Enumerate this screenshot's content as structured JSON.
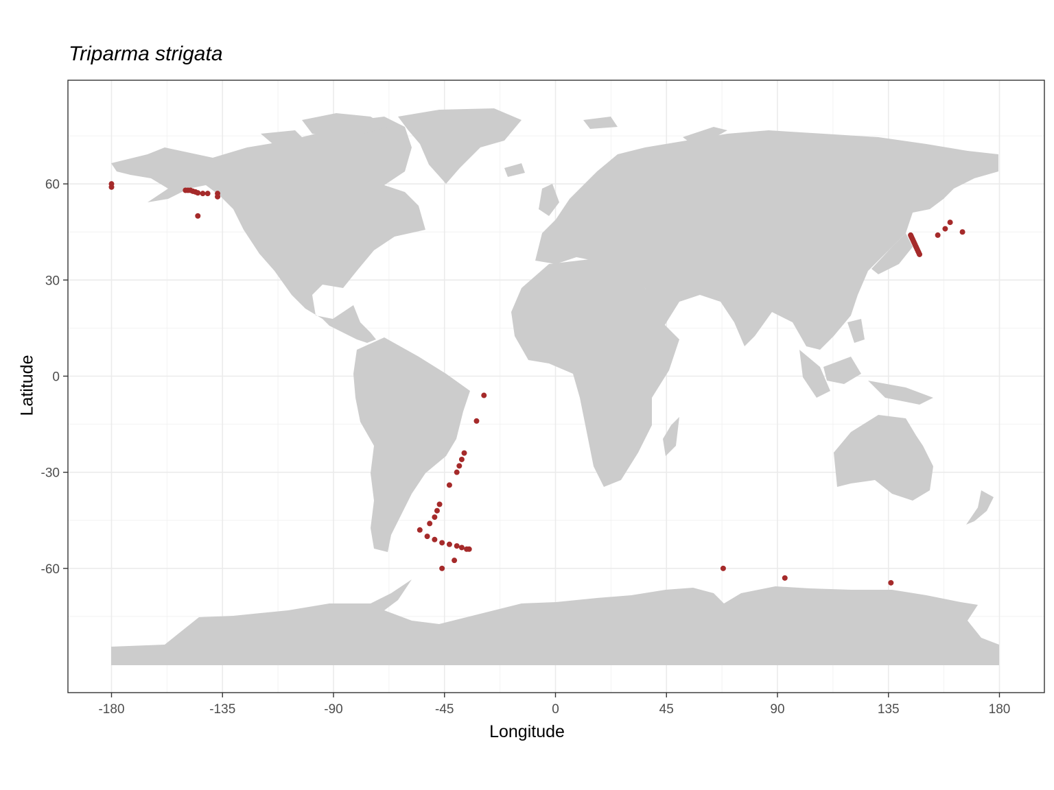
{
  "chart_data": {
    "type": "scatter",
    "subtype": "map",
    "title": "Triparma strigata",
    "xlabel": "Longitude",
    "ylabel": "Latitude",
    "xlim": [
      -180,
      180
    ],
    "ylim": [
      -90,
      90
    ],
    "x_ticks": [
      -180,
      -135,
      -90,
      -45,
      0,
      45,
      90,
      135,
      180
    ],
    "y_ticks": [
      -60,
      -30,
      0,
      30,
      60
    ],
    "x_tick_labels": [
      "-180",
      "-135",
      "-90",
      "-45",
      "0",
      "45",
      "90",
      "135",
      "180"
    ],
    "y_tick_labels": [
      "-60",
      "-30",
      "0",
      "30",
      "60"
    ],
    "grid": true,
    "land_color": "#cccccc",
    "point_color": "#a52a2a",
    "series": [
      {
        "points": [
          {
            "x": -180,
            "y": 60
          },
          {
            "x": -180,
            "y": 59
          },
          {
            "x": -150,
            "y": 58
          },
          {
            "x": -149,
            "y": 58
          },
          {
            "x": -148,
            "y": 58
          },
          {
            "x": -147,
            "y": 57.7
          },
          {
            "x": -146,
            "y": 57.5
          },
          {
            "x": -145,
            "y": 57.2
          },
          {
            "x": -143,
            "y": 57
          },
          {
            "x": -141,
            "y": 57
          },
          {
            "x": -137,
            "y": 57
          },
          {
            "x": -137,
            "y": 56
          },
          {
            "x": -145,
            "y": 50
          },
          {
            "x": 144,
            "y": 44
          },
          {
            "x": 144.3,
            "y": 43.5
          },
          {
            "x": 144.6,
            "y": 43
          },
          {
            "x": 144.9,
            "y": 42.5
          },
          {
            "x": 145.2,
            "y": 42
          },
          {
            "x": 145.5,
            "y": 41.5
          },
          {
            "x": 145.8,
            "y": 41
          },
          {
            "x": 146.1,
            "y": 40.5
          },
          {
            "x": 146.4,
            "y": 40
          },
          {
            "x": 146.7,
            "y": 39.5
          },
          {
            "x": 147,
            "y": 39
          },
          {
            "x": 147.3,
            "y": 38.5
          },
          {
            "x": 147.6,
            "y": 38
          },
          {
            "x": 155,
            "y": 44
          },
          {
            "x": 158,
            "y": 46
          },
          {
            "x": 160,
            "y": 48
          },
          {
            "x": 165,
            "y": 45
          },
          {
            "x": -29,
            "y": -6
          },
          {
            "x": -32,
            "y": -14
          },
          {
            "x": -37,
            "y": -24
          },
          {
            "x": -38,
            "y": -26
          },
          {
            "x": -39,
            "y": -28
          },
          {
            "x": -40,
            "y": -30
          },
          {
            "x": -43,
            "y": -34
          },
          {
            "x": -47,
            "y": -40
          },
          {
            "x": -48,
            "y": -42
          },
          {
            "x": -49,
            "y": -44
          },
          {
            "x": -51,
            "y": -46
          },
          {
            "x": -55,
            "y": -48
          },
          {
            "x": -52,
            "y": -50
          },
          {
            "x": -49,
            "y": -51
          },
          {
            "x": -46,
            "y": -52
          },
          {
            "x": -43,
            "y": -52.5
          },
          {
            "x": -40,
            "y": -53
          },
          {
            "x": -38,
            "y": -53.5
          },
          {
            "x": -36,
            "y": -54
          },
          {
            "x": -35,
            "y": -54
          },
          {
            "x": -41,
            "y": -57.5
          },
          {
            "x": -46,
            "y": -60
          },
          {
            "x": 68,
            "y": -60
          },
          {
            "x": 93,
            "y": -63
          },
          {
            "x": 136,
            "y": -64.5
          }
        ]
      }
    ]
  }
}
